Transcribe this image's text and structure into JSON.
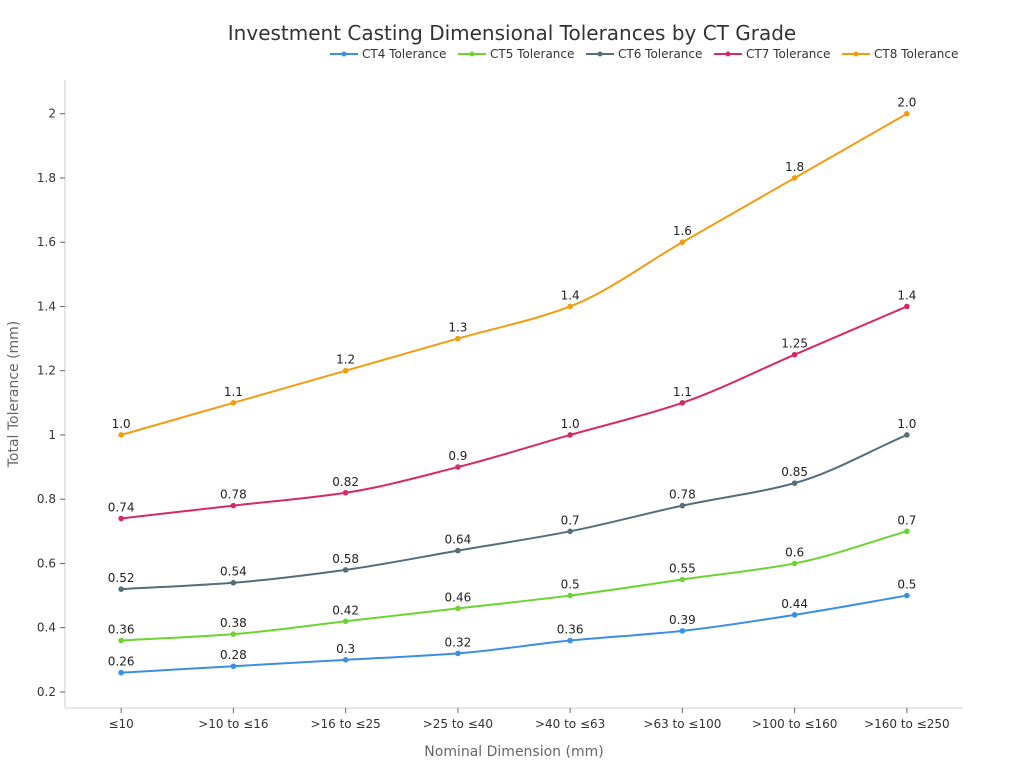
{
  "chart_data": {
    "type": "line",
    "title": "Investment Casting Dimensional Tolerances by CT Grade",
    "xlabel": "Nominal Dimension (mm)",
    "ylabel": "Total Tolerance (mm)",
    "categories": [
      "≤10",
      ">10 to ≤16",
      ">16 to ≤25",
      ">25 to ≤40",
      ">40 to ≤63",
      ">63 to ≤100",
      ">100 to ≤160",
      ">160 to ≤250"
    ],
    "ylim": [
      0.15,
      2.105
    ],
    "yticks": [
      0.2,
      0.4,
      0.6,
      0.8,
      1,
      1.2,
      1.4,
      1.6,
      1.8,
      2
    ],
    "ytick_labels": [
      "0.2",
      "0.4",
      "0.6",
      "0.8",
      "1",
      "1.2",
      "1.4",
      "1.6",
      "1.8",
      "2"
    ],
    "grid": false,
    "legend": "top-right",
    "smooth": true,
    "series": [
      {
        "name": "CT4 Tolerance",
        "color": "#3b8fe3",
        "values": [
          0.26,
          0.28,
          0.3,
          0.32,
          0.36,
          0.39,
          0.44,
          0.5
        ],
        "labels": [
          "0.26",
          "0.28",
          "0.3",
          "0.32",
          "0.36",
          "0.39",
          "0.44",
          "0.5"
        ]
      },
      {
        "name": "CT5 Tolerance",
        "color": "#6cd332",
        "values": [
          0.36,
          0.38,
          0.42,
          0.46,
          0.5,
          0.55,
          0.6,
          0.7
        ],
        "labels": [
          "0.36",
          "0.38",
          "0.42",
          "0.46",
          "0.5",
          "0.55",
          "0.6",
          "0.7"
        ]
      },
      {
        "name": "CT6 Tolerance",
        "color": "#546e7a",
        "values": [
          0.52,
          0.54,
          0.58,
          0.64,
          0.7,
          0.78,
          0.85,
          1.0
        ],
        "labels": [
          "0.52",
          "0.54",
          "0.58",
          "0.64",
          "0.7",
          "0.78",
          "0.85",
          "1.0"
        ]
      },
      {
        "name": "CT7 Tolerance",
        "color": "#d62a68",
        "values": [
          0.74,
          0.78,
          0.82,
          0.9,
          1.0,
          1.1,
          1.25,
          1.4
        ],
        "labels": [
          "0.74",
          "0.78",
          "0.82",
          "0.9",
          "1.0",
          "1.1",
          "1.25",
          "1.4"
        ]
      },
      {
        "name": "CT8 Tolerance",
        "color": "#f39c12",
        "values": [
          1.0,
          1.1,
          1.2,
          1.3,
          1.4,
          1.6,
          1.8,
          2.0
        ],
        "labels": [
          "1.0",
          "1.1",
          "1.2",
          "1.3",
          "1.4",
          "1.6",
          "1.8",
          "2.0"
        ]
      }
    ]
  }
}
